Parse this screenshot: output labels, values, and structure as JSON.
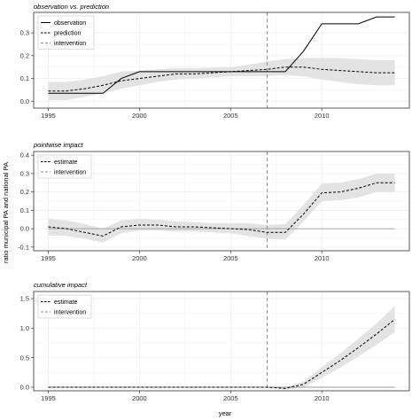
{
  "shared": {
    "xlabel": "year",
    "ylabel": "ratio municipal PA and national PA",
    "intervention_year": 2007,
    "colors": {
      "band": "#e3e3e3",
      "grid": "#ececec",
      "line": "#000000",
      "intervention": "#888888",
      "zero": "#9a9a9a"
    }
  },
  "chart_data": [
    {
      "type": "line",
      "title": "observation vs. prediction",
      "xlim": [
        1994.2,
        2014.8
      ],
      "ylim": [
        -0.03,
        0.39
      ],
      "xticks": [
        1995,
        2000,
        2005,
        2010
      ],
      "xtick_labels": [
        "1995",
        "2000",
        "2005",
        "2010"
      ],
      "yticks": [
        0.0,
        0.1,
        0.2,
        0.3
      ],
      "ytick_labels": [
        "0.0",
        "0.1",
        "0.2",
        "0.3"
      ],
      "grid": true,
      "legend": {
        "placement": "top-left",
        "entries": [
          "observation",
          "prediction",
          "intervention"
        ]
      },
      "x": [
        1995,
        1996,
        1997,
        1998,
        1999,
        2000,
        2001,
        2002,
        2003,
        2004,
        2005,
        2006,
        2007,
        2008,
        2009,
        2010,
        2011,
        2012,
        2013,
        2014
      ],
      "series": [
        {
          "name": "observation",
          "style": "solid",
          "values": [
            0.035,
            0.035,
            0.035,
            0.035,
            0.1,
            0.13,
            0.13,
            0.13,
            0.13,
            0.13,
            0.13,
            0.13,
            0.13,
            0.13,
            0.22,
            0.34,
            0.34,
            0.34,
            0.37,
            0.37
          ]
        },
        {
          "name": "prediction",
          "style": "dashed",
          "values": [
            0.045,
            0.045,
            0.055,
            0.07,
            0.09,
            0.1,
            0.11,
            0.12,
            0.12,
            0.125,
            0.13,
            0.135,
            0.14,
            0.15,
            0.15,
            0.14,
            0.135,
            0.13,
            0.125,
            0.125
          ],
          "band_lower": [
            0.005,
            0.005,
            0.02,
            0.035,
            0.055,
            0.07,
            0.085,
            0.095,
            0.1,
            0.105,
            0.11,
            0.11,
            0.11,
            0.115,
            0.11,
            0.095,
            0.085,
            0.075,
            0.07,
            0.07
          ],
          "band_upper": [
            0.085,
            0.085,
            0.095,
            0.11,
            0.13,
            0.135,
            0.14,
            0.145,
            0.145,
            0.148,
            0.15,
            0.16,
            0.175,
            0.185,
            0.19,
            0.19,
            0.19,
            0.185,
            0.18,
            0.18
          ]
        }
      ]
    },
    {
      "type": "line",
      "title": "pointwise impact",
      "xlim": [
        1994.2,
        2014.8
      ],
      "ylim": [
        -0.12,
        0.42
      ],
      "xticks": [
        1995,
        2000,
        2005,
        2010
      ],
      "xtick_labels": [
        "1995",
        "2000",
        "2005",
        "2010"
      ],
      "yticks": [
        -0.1,
        0.0,
        0.1,
        0.2,
        0.3,
        0.4
      ],
      "ytick_labels": [
        "-0.1",
        "0.0",
        "0.1",
        "0.2",
        "0.3",
        "0.4"
      ],
      "grid": true,
      "legend": {
        "placement": "top-left",
        "entries": [
          "estimate",
          "intervention"
        ]
      },
      "x": [
        1995,
        1996,
        1997,
        1998,
        1999,
        2000,
        2001,
        2002,
        2003,
        2004,
        2005,
        2006,
        2007,
        2008,
        2009,
        2010,
        2011,
        2012,
        2013,
        2014
      ],
      "series": [
        {
          "name": "estimate",
          "style": "dashed",
          "values": [
            0.01,
            0.0,
            -0.02,
            -0.04,
            0.01,
            0.02,
            0.02,
            0.01,
            0.01,
            0.005,
            0.0,
            -0.005,
            -0.02,
            -0.02,
            0.08,
            0.195,
            0.2,
            0.22,
            0.25,
            0.25
          ],
          "band_lower": [
            -0.035,
            -0.04,
            -0.055,
            -0.075,
            -0.025,
            -0.01,
            -0.01,
            -0.015,
            -0.015,
            -0.02,
            -0.025,
            -0.04,
            -0.055,
            -0.06,
            0.04,
            0.15,
            0.155,
            0.17,
            0.2,
            0.2
          ],
          "band_upper": [
            0.055,
            0.045,
            0.025,
            0.0,
            0.045,
            0.055,
            0.05,
            0.04,
            0.035,
            0.03,
            0.03,
            0.03,
            0.02,
            0.025,
            0.13,
            0.245,
            0.25,
            0.27,
            0.3,
            0.3
          ]
        }
      ]
    },
    {
      "type": "line",
      "title": "cumulative impact",
      "xlim": [
        1994.2,
        2014.8
      ],
      "ylim": [
        -0.06,
        1.62
      ],
      "xticks": [
        1995,
        2000,
        2005,
        2010
      ],
      "xtick_labels": [
        "1995",
        "2000",
        "2005",
        "2010"
      ],
      "yticks": [
        0.0,
        0.5,
        1.0,
        1.5
      ],
      "ytick_labels": [
        "0.0",
        "0.5",
        "1.0",
        "1.5"
      ],
      "grid": true,
      "legend": {
        "placement": "top-left",
        "entries": [
          "estimate",
          "intervention"
        ]
      },
      "x": [
        1995,
        1996,
        1997,
        1998,
        1999,
        2000,
        2001,
        2002,
        2003,
        2004,
        2005,
        2006,
        2007,
        2008,
        2009,
        2010,
        2011,
        2012,
        2013,
        2014
      ],
      "series": [
        {
          "name": "estimate",
          "style": "dashed",
          "values": [
            0,
            0,
            0,
            0,
            0,
            0,
            0,
            0,
            0,
            0,
            0,
            0,
            0,
            -0.02,
            0.05,
            0.25,
            0.45,
            0.67,
            0.9,
            1.15
          ],
          "band_lower": [
            0,
            0,
            0,
            0,
            0,
            0,
            0,
            0,
            0,
            0,
            0,
            0,
            0,
            -0.04,
            0.0,
            0.16,
            0.33,
            0.52,
            0.72,
            0.93
          ],
          "band_upper": [
            0,
            0,
            0,
            0,
            0,
            0,
            0,
            0,
            0,
            0,
            0,
            0,
            0,
            0.0,
            0.1,
            0.34,
            0.57,
            0.82,
            1.08,
            1.37
          ]
        }
      ]
    }
  ]
}
